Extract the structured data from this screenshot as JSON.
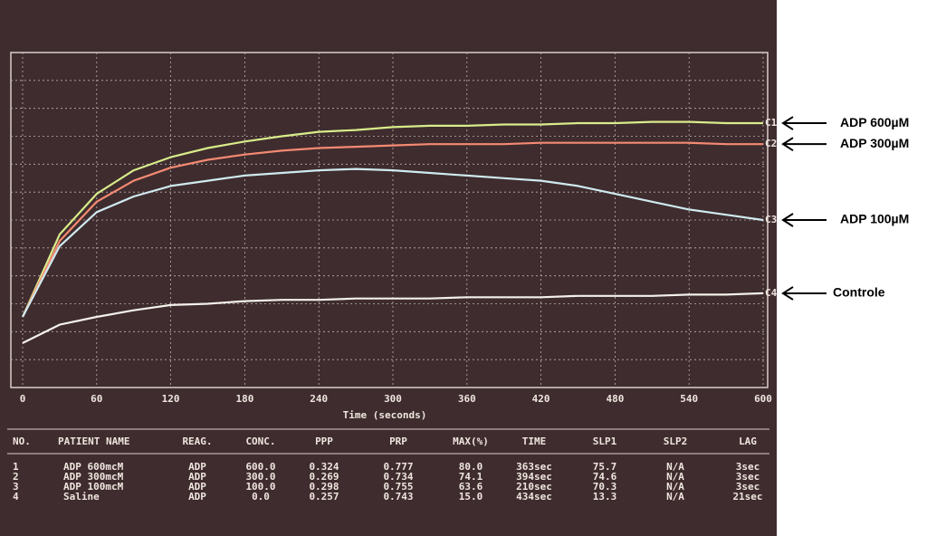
{
  "chart_data": {
    "type": "line",
    "x": [
      0,
      30,
      60,
      90,
      120,
      150,
      180,
      210,
      240,
      270,
      300,
      330,
      360,
      390,
      420,
      450,
      480,
      510,
      540,
      570,
      600
    ],
    "xlim": [
      0,
      600
    ],
    "xticks": [
      0,
      60,
      120,
      180,
      240,
      300,
      360,
      420,
      480,
      540,
      600
    ],
    "ylim": [
      -21,
      107
    ],
    "xlabel": "Time (seconds)",
    "series": [
      {
        "name": "C1",
        "color": "#d8ec8a",
        "values": [
          6,
          37.5,
          53,
          62,
          67,
          70.5,
          73,
          75,
          76.7,
          77.4,
          78.5,
          79,
          79,
          79.5,
          79.5,
          80,
          80,
          80.5,
          80.5,
          80,
          80
        ]
      },
      {
        "name": "C2",
        "color": "#f48a72",
        "values": [
          6,
          35,
          50,
          58,
          63,
          66,
          68,
          69.5,
          70.5,
          71,
          71.5,
          72,
          72,
          72,
          72.5,
          72.5,
          72.5,
          72.5,
          72.5,
          72,
          72
        ]
      },
      {
        "name": "C3",
        "color": "#cfeaf0",
        "values": [
          6,
          33,
          46,
          52,
          56,
          58,
          60,
          61,
          62,
          62.5,
          62,
          61,
          60,
          59,
          58,
          56,
          53,
          50,
          47,
          45,
          43
        ]
      },
      {
        "name": "C4",
        "color": "#f4f0ea",
        "values": [
          -4,
          3,
          6,
          8.5,
          10.5,
          11,
          12,
          12.5,
          12.5,
          13,
          13,
          13,
          13.5,
          13.5,
          13.5,
          14,
          14,
          14,
          14.5,
          14.5,
          15
        ]
      }
    ],
    "annotations": [
      "ADP 600µM",
      "ADP 300µM",
      "ADP 100µM",
      "Controle"
    ]
  },
  "table": {
    "header": [
      "NO.",
      "PATIENT NAME",
      "REAG.",
      "CONC.",
      "PPP",
      "PRP",
      "MAX(%)",
      "TIME",
      "SLP1",
      "SLP2",
      "LAG"
    ],
    "rows": [
      [
        "1",
        "ADP 600mcM",
        "ADP",
        "600.0",
        "0.324",
        "0.777",
        "80.0",
        "363sec",
        "75.7",
        "N/A",
        "3sec"
      ],
      [
        "2",
        "ADP 300mcM",
        "ADP",
        "300.0",
        "0.269",
        "0.734",
        "74.1",
        "394sec",
        "74.6",
        "N/A",
        "3sec"
      ],
      [
        "3",
        "ADP 100mcM",
        "ADP",
        "100.0",
        "0.298",
        "0.755",
        "63.6",
        "210sec",
        "70.3",
        "N/A",
        "3sec"
      ],
      [
        "4",
        "Saline",
        "ADP",
        "0.0",
        "0.257",
        "0.743",
        "15.0",
        "434sec",
        "13.3",
        "N/A",
        "21sec"
      ]
    ]
  }
}
